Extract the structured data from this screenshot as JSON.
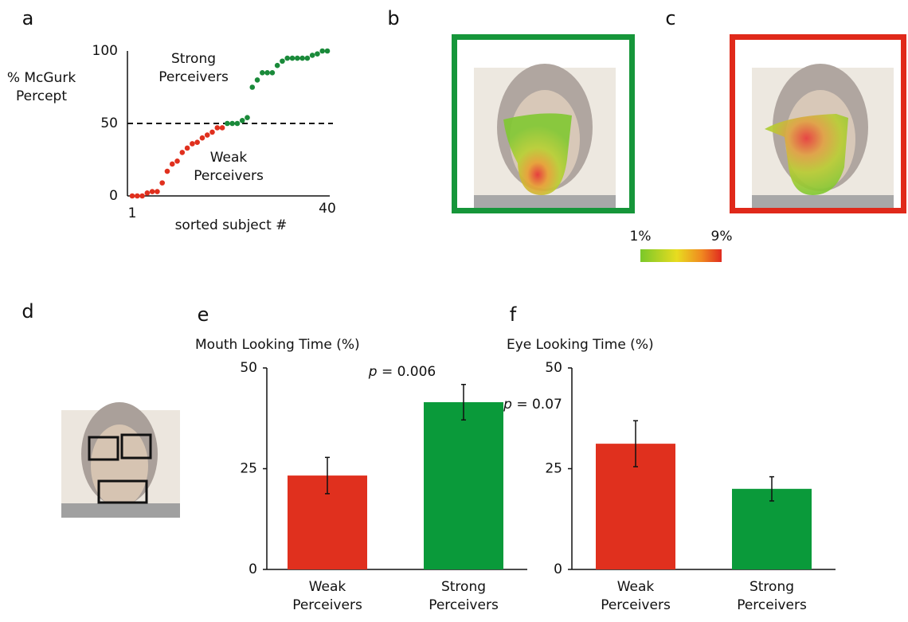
{
  "panel_labels": [
    "a",
    "b",
    "c",
    "d",
    "e",
    "f"
  ],
  "colorbar": {
    "range": [
      1,
      9
    ],
    "ticks": [
      {
        "value": 1,
        "label": "1%"
      },
      {
        "value": 9,
        "label": "9%"
      }
    ]
  },
  "chart_data": [
    {
      "type": "scatter",
      "ylabel": "% McGurk Percept",
      "xlabel": "sorted subject #",
      "xlim": [
        1,
        40
      ],
      "xticks": [
        1,
        40
      ],
      "ylim": [
        0,
        100
      ],
      "yticks": [
        0,
        50,
        100
      ],
      "hline": 50,
      "series": [
        {
          "name": "Weak Perceivers",
          "color": "#e0301e",
          "x": [
            1,
            2,
            3,
            4,
            5,
            6,
            7,
            8,
            9,
            10,
            11,
            12,
            13,
            14,
            15,
            16,
            17,
            18,
            19
          ],
          "values": [
            0,
            0,
            0,
            2,
            3,
            3,
            9,
            17,
            22,
            24,
            30,
            33,
            36,
            37,
            40,
            42,
            44,
            47,
            47
          ]
        },
        {
          "name": "Strong Perceivers",
          "color": "#1a8a3a",
          "x": [
            20,
            21,
            22,
            23,
            24,
            25,
            26,
            27,
            28,
            29,
            30,
            31,
            32,
            33,
            34,
            35,
            36,
            37,
            38,
            39,
            40
          ],
          "values": [
            50,
            50,
            50,
            52,
            54,
            75,
            80,
            85,
            85,
            85,
            90,
            93,
            95,
            95,
            95,
            95,
            95,
            97,
            98,
            100,
            100
          ]
        }
      ]
    },
    {
      "type": "bar",
      "title": "Mouth Looking Time (%)",
      "categories": [
        "Weak Perceivers",
        "Strong Perceivers"
      ],
      "values": [
        23.3,
        41.5
      ],
      "errors": [
        4.5,
        4.4
      ],
      "colors": [
        "#e0301e",
        "#0a9a3a"
      ],
      "ylim": [
        0,
        50
      ],
      "yticks": [
        0,
        25,
        50
      ],
      "annotation": {
        "symbol": "p",
        "text": "= 0.006"
      }
    },
    {
      "type": "bar",
      "title": "Eye Looking Time (%)",
      "categories": [
        "Weak Perceivers",
        "Strong Perceivers"
      ],
      "values": [
        31.2,
        20.0
      ],
      "errors": [
        5.7,
        3.0
      ],
      "colors": [
        "#e0301e",
        "#0a9a3a"
      ],
      "ylim": [
        0,
        50
      ],
      "yticks": [
        0,
        25,
        50
      ],
      "annotation": {
        "symbol": "p",
        "text": "= 0.07"
      }
    }
  ]
}
